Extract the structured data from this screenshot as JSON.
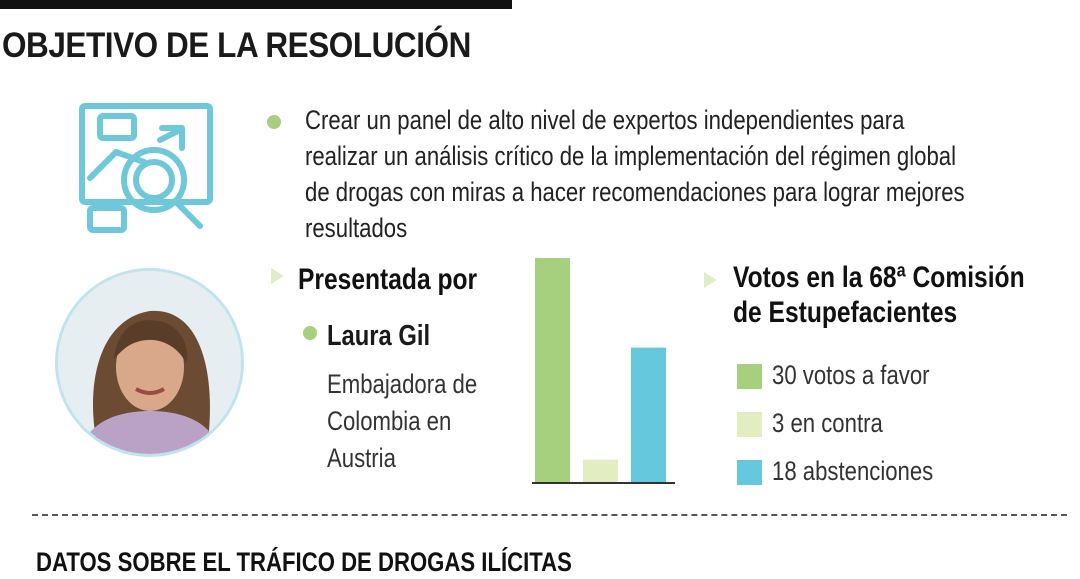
{
  "header": {
    "title": "OBJETIVO DE LA RESOLUCIÓN"
  },
  "objective": {
    "icon": "analysis-magnifier-icon",
    "text": "Crear un panel de alto nivel de expertos independientes para realizar un análisis crítico de la implementación del régimen global de drogas con miras a hacer recomendaciones para lograr mejores resultados"
  },
  "presenter": {
    "heading": "Presentada por",
    "name": "Laura Gil",
    "role": "Embajadora de Colombia en Austria",
    "photo_icon": "portrait-photo"
  },
  "votes": {
    "heading": "Votos en la 68ª Comisión de Estupefacientes",
    "legend": [
      {
        "label": "30 votos a favor",
        "color": "#a6cf7e"
      },
      {
        "label": "3 en contra",
        "color": "#e2edc1"
      },
      {
        "label": "18 abstenciones",
        "color": "#65c8dc"
      }
    ]
  },
  "chart_data": {
    "type": "bar",
    "categories": [
      "a favor",
      "en contra",
      "abstenciones"
    ],
    "values": [
      30,
      3,
      18
    ],
    "colors": [
      "#a6cf7e",
      "#e2edc1",
      "#65c8dc"
    ],
    "ylim": [
      0,
      30
    ]
  },
  "footer": {
    "title": "DATOS SOBRE EL TRÁFICO DE DROGAS ILÍCITAS"
  }
}
